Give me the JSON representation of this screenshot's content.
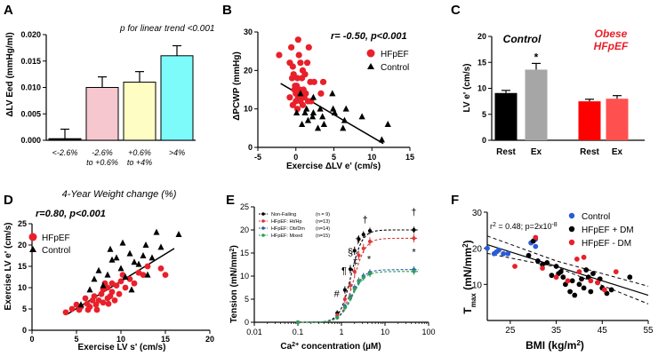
{
  "chart_data": [
    {
      "id": "A",
      "panel_label": "A",
      "type": "bar",
      "title": "",
      "annotation": "p for linear trend <0.001",
      "xlabel": "4-Year Weight change (%)",
      "ylabel": "ΔLV Eed (mmHg/ml)",
      "categories": [
        "<-2.6%",
        "-2.6% to +0.6%",
        "+0.6% to +4%",
        ">4%"
      ],
      "category_lines": [
        [
          "<-2.6%"
        ],
        [
          "-2.6%",
          "to +0.6%"
        ],
        [
          "+0.6%",
          "to +4%"
        ],
        [
          ">4%"
        ]
      ],
      "values": [
        0.0003,
        0.01,
        0.011,
        0.016
      ],
      "errors": [
        0.0018,
        0.002,
        0.002,
        0.0019
      ],
      "bar_colors": [
        "#000000",
        "#f6c7cf",
        "#fdfdc4",
        "#7dfafa"
      ],
      "ylim": [
        0,
        0.02
      ],
      "yticks": [
        0.0,
        0.005,
        0.01,
        0.015,
        0.02
      ],
      "ytick_labels": [
        "0.000",
        "0.005",
        "0.010",
        "0.015",
        "0.020"
      ]
    },
    {
      "id": "B",
      "panel_label": "B",
      "type": "scatter",
      "annotation": "r= -0.50, p<0.001",
      "xlabel": "Exercise ΔLV e' (cm/s)",
      "ylabel": "ΔPCWP (mmHg)",
      "xlim": [
        -5,
        15
      ],
      "ylim": [
        0,
        30
      ],
      "xticks": [
        -5,
        0,
        5,
        10,
        15
      ],
      "yticks": [
        0,
        10,
        20,
        30
      ],
      "legend": [
        {
          "name": "HFpEF",
          "marker": "circle",
          "color": "#e8202a"
        },
        {
          "name": "Control",
          "marker": "triangle",
          "color": "#000000"
        }
      ],
      "series": [
        {
          "name": "HFpEF",
          "marker": "circle",
          "color": "#e8202a",
          "x": [
            -2.2,
            0.3,
            -0.6,
            1.7,
            0.4,
            -0.8,
            0.6,
            1.5,
            -0.4,
            0.9,
            -0.3,
            1.2,
            0.2,
            -0.5,
            0.8,
            1.9,
            2.4,
            3.6,
            0.1,
            -0.1,
            1.0,
            -0.2,
            0.5,
            0.7,
            1.3,
            0.0,
            3.3,
            -0.8,
            0.3,
            1.1,
            0.6,
            0.0,
            1.6,
            2.0,
            -0.4,
            0.9,
            0.2
          ],
          "y": [
            24,
            28,
            26,
            26,
            24,
            22,
            22,
            22,
            21,
            20,
            19,
            19,
            18,
            18,
            18,
            17,
            17,
            17,
            16,
            16,
            15,
            15,
            15,
            14,
            14,
            14,
            14,
            13,
            13,
            13,
            12,
            12,
            12,
            12,
            11,
            11,
            10
          ]
        },
        {
          "name": "Control",
          "marker": "triangle",
          "color": "#000000",
          "x": [
            4.8,
            6.6,
            4.9,
            1.4,
            3.2,
            5.1,
            2.3,
            0.1,
            1.2,
            2.2,
            3.5,
            8.7,
            6.4,
            1.6,
            0.8,
            3.7,
            2.9,
            6.2,
            12.1,
            11.3,
            0.6,
            2.3
          ],
          "y": [
            14,
            10,
            10,
            10,
            10,
            9,
            9,
            9,
            9,
            8,
            8,
            8,
            7,
            7,
            6,
            6,
            5,
            5,
            6,
            2,
            14,
            13
          ]
        }
      ],
      "trendline": {
        "x": [
          -2,
          11.5
        ],
        "y": [
          16.6,
          1.0
        ]
      }
    },
    {
      "id": "C",
      "panel_label": "C",
      "type": "bar",
      "ylabel": "LV e' (cm/s)",
      "group_labels": [
        "Control",
        "Obese HFpEF"
      ],
      "group_label_lines": [
        [
          "Control"
        ],
        [
          "Obese",
          "HFpEF"
        ]
      ],
      "group_label_colors": [
        "#000000",
        "#e8202a"
      ],
      "categories": [
        "Rest",
        "Ex",
        "Rest",
        "Ex"
      ],
      "values": [
        9.1,
        13.6,
        7.5,
        8.0
      ],
      "errors": [
        0.5,
        1.2,
        0.4,
        0.6
      ],
      "bar_colors": [
        "#000000",
        "#a6a6a6",
        "#ff0000",
        "#ff5050"
      ],
      "significance": [
        "",
        "*",
        "",
        ""
      ],
      "ylim": [
        0,
        20
      ],
      "yticks": [
        0,
        5,
        10,
        15,
        20
      ],
      "ytick_labels": [
        "0",
        "5",
        "10",
        "15",
        "20"
      ]
    },
    {
      "id": "D",
      "panel_label": "D",
      "type": "scatter",
      "annotation": "r=0.80, p<0.001",
      "xlabel": "Exercise LV s' (cm/s)",
      "ylabel": "Exercise LV e' (cm/s)",
      "xlim": [
        0,
        20
      ],
      "ylim": [
        0,
        25
      ],
      "xticks": [
        0,
        5,
        10,
        15,
        20
      ],
      "yticks": [
        0,
        5,
        10,
        15,
        20,
        25
      ],
      "legend": [
        {
          "name": "HFpEF",
          "marker": "circle",
          "color": "#e8202a"
        },
        {
          "name": "Control",
          "marker": "triangle",
          "color": "#000000"
        }
      ],
      "series": [
        {
          "name": "HFpEF",
          "marker": "circle",
          "color": "#e8202a",
          "x": [
            3.8,
            4.5,
            5.0,
            5.3,
            5.5,
            6.0,
            6.2,
            6.5,
            6.8,
            7.0,
            7.2,
            7.5,
            7.8,
            8.0,
            8.0,
            8.2,
            8.5,
            8.5,
            8.8,
            9.0,
            9.0,
            9.3,
            9.5,
            9.8,
            10.0,
            10.2,
            10.5,
            11.0,
            11.5,
            12.0,
            12.5,
            13.0,
            14.5,
            15.0,
            6.3,
            7.3,
            8.6
          ],
          "y": [
            4.2,
            5.0,
            6.0,
            4.8,
            5.5,
            7.5,
            6.2,
            5.5,
            7.0,
            8.0,
            6.0,
            7.0,
            8.5,
            9.5,
            6.5,
            11.0,
            7.5,
            10.0,
            8.0,
            9.0,
            11.0,
            7.0,
            10.5,
            8.5,
            11.5,
            13.0,
            10.0,
            12.0,
            11.0,
            13.5,
            13.0,
            15.0,
            14.5,
            13.0,
            4.8,
            4.8,
            6.2
          ]
        },
        {
          "name": "Control",
          "marker": "triangle",
          "color": "#000000",
          "x": [
            5.5,
            6.5,
            7.0,
            7.5,
            8.0,
            8.5,
            9.0,
            9.5,
            10.0,
            10.5,
            11.0,
            11.5,
            12.0,
            12.5,
            13.0,
            14.0,
            14.5,
            16.5,
            8.8,
            11.2,
            13.5,
            12.8,
            10.2
          ],
          "y": [
            6.0,
            9.5,
            12.0,
            14.0,
            10.5,
            13.0,
            16.5,
            17.0,
            14.5,
            12.5,
            18.0,
            16.0,
            15.5,
            17.5,
            13.0,
            23.0,
            19.5,
            22.5,
            19.0,
            9.5,
            17.0,
            20.0,
            20.5
          ]
        }
      ],
      "trendline": {
        "x": [
          4,
          16
        ],
        "y": [
          3.8,
          19.2
        ]
      }
    },
    {
      "id": "E",
      "panel_label": "E",
      "type": "line",
      "xscale": "log",
      "xlabel": "Ca2+ concentration (µM)",
      "xlabel_parts": [
        "Ca",
        "2+",
        " concentration (",
        "µM",
        ")"
      ],
      "ylabel": "Tension (mN/mm2)",
      "ylabel_parts": [
        "Tension (mN/mm",
        "2",
        ")"
      ],
      "xlim": [
        0.01,
        100
      ],
      "ylim": [
        0,
        25
      ],
      "xticks": [
        0.01,
        0.1,
        1,
        10,
        100
      ],
      "xtick_labels": [
        "0.01",
        "0.1",
        "1",
        "10",
        "100"
      ],
      "yticks": [
        0,
        5,
        10,
        15,
        20,
        25
      ],
      "legend": [
        {
          "name": "Non-Failing",
          "n": "(n = 9)",
          "color": "#000000"
        },
        {
          "name": "HFpEF: Ht/Hp",
          "n": "(n=13)",
          "color": "#d93a3a"
        },
        {
          "name": "HFpEF: Ob/Dm",
          "n": "(n=14)",
          "color": "#2e5fa8"
        },
        {
          "name": "HFpEF: Mixed",
          "n": "(n=15)",
          "color": "#2f9e5a"
        }
      ],
      "x": [
        0.1,
        0.8,
        1.2,
        1.6,
        2.0,
        2.5,
        3.2,
        4.5,
        46
      ],
      "series": [
        {
          "name": "Non-Failing",
          "color": "#000000",
          "max": 20.0,
          "ec50": 1.65,
          "hill": 3.4,
          "values": [
            0.0,
            2.0,
            7.0,
            11.5,
            15.5,
            18.0,
            19.0,
            19.8,
            20.0
          ],
          "errors": [
            0.2,
            0.6,
            0.8,
            0.9,
            0.9,
            0.8,
            0.7,
            0.7,
            0.7
          ]
        },
        {
          "name": "HFpEF: Ht/Hp",
          "color": "#d93a3a",
          "max": 18.2,
          "ec50": 1.9,
          "hill": 3.2,
          "values": [
            0.0,
            1.5,
            5.0,
            8.0,
            11.0,
            14.5,
            16.0,
            17.5,
            18.2
          ],
          "errors": [
            0.2,
            0.5,
            0.8,
            0.9,
            1.0,
            1.0,
            1.0,
            0.9,
            0.9
          ]
        },
        {
          "name": "HFpEF: Ob/Dm",
          "color": "#2e5fa8",
          "max": 11.4,
          "ec50": 1.7,
          "hill": 3.0,
          "values": [
            0.0,
            1.0,
            3.5,
            5.5,
            7.5,
            9.0,
            10.0,
            10.8,
            11.4
          ],
          "errors": [
            0.2,
            0.4,
            0.6,
            0.7,
            0.7,
            0.7,
            0.7,
            0.7,
            0.7
          ]
        },
        {
          "name": "HFpEF: Mixed",
          "color": "#2f9e5a",
          "max": 11.0,
          "ec50": 1.75,
          "hill": 3.0,
          "values": [
            0.0,
            1.0,
            3.2,
            5.2,
            7.2,
            8.8,
            9.7,
            10.5,
            11.0
          ],
          "errors": [
            0.2,
            0.4,
            0.6,
            0.7,
            0.7,
            0.7,
            0.7,
            0.7,
            0.7
          ]
        }
      ],
      "annotations": [
        {
          "text": "#",
          "x": 0.78,
          "y": 5.5
        },
        {
          "text": "¶",
          "x": 1.15,
          "y": 10.5
        },
        {
          "text": "§",
          "x": 1.6,
          "y": 14.5
        },
        {
          "text": "‡",
          "x": 2.1,
          "y": 12.5
        },
        {
          "text": "†",
          "x": 2.35,
          "y": 17.0
        },
        {
          "text": "†",
          "x": 3.5,
          "y": 21.5
        },
        {
          "text": "*",
          "x": 4.3,
          "y": 13.0
        },
        {
          "text": "†",
          "x": 46,
          "y": 23.2
        },
        {
          "text": "*",
          "x": 46,
          "y": 14.5
        }
      ]
    },
    {
      "id": "F",
      "panel_label": "F",
      "type": "scatter",
      "annotation": "r2 = 0.48; p=2x10-8",
      "annotation_parts": [
        "r",
        "2",
        " = 0.48; p=2x10",
        "-8"
      ],
      "xlabel": "BMI (kg/m2)",
      "xlabel_parts": [
        "BMI (kg/m",
        "2",
        ")"
      ],
      "ylabel": "Tmax (mN/mm2)",
      "ylabel_parts": [
        "T",
        "max",
        " (mN/mm",
        "2",
        ")"
      ],
      "xlim": [
        20,
        55
      ],
      "ylim": [
        0,
        30
      ],
      "xticks": [
        25,
        35,
        45,
        55
      ],
      "yticks": [
        10,
        20,
        30
      ],
      "legend": [
        {
          "name": "Control",
          "color": "#2a5bd7"
        },
        {
          "name": "HFpEF + DM",
          "color": "#000000"
        },
        {
          "name": "HFpEF  - DM",
          "color": "#e8202a"
        }
      ],
      "series": [
        {
          "name": "Control",
          "color": "#2a5bd7",
          "x": [
            20.0,
            21.5,
            22.0,
            22.5,
            23.5,
            24.5,
            29.5,
            30.5,
            30.5
          ],
          "y": [
            20.0,
            18.5,
            19.0,
            19.5,
            18.5,
            18.5,
            21.5,
            22.5,
            20.5
          ]
        },
        {
          "name": "HFpEF + DM",
          "color": "#000000",
          "x": [
            29.0,
            30.0,
            31.0,
            32.0,
            33.0,
            34.0,
            35.0,
            35.5,
            36.0,
            36.5,
            37.0,
            38.0,
            38.5,
            39.0,
            40.0,
            40.5,
            41.0,
            42.0,
            42.5,
            43.0,
            44.0,
            45.0,
            46.0,
            47.0,
            51.0,
            41.5,
            44.5
          ],
          "y": [
            18.0,
            22.0,
            16.5,
            15.5,
            16.0,
            12.5,
            15.0,
            13.0,
            13.5,
            12.0,
            10.0,
            8.0,
            11.0,
            7.0,
            10.0,
            11.5,
            9.0,
            12.0,
            8.0,
            13.0,
            10.5,
            9.0,
            7.5,
            8.5,
            12.0,
            14.0,
            11.5
          ]
        },
        {
          "name": "HFpEF  - DM",
          "color": "#e8202a",
          "x": [
            26.0,
            30.5,
            32.0,
            35.0,
            37.5,
            39.5,
            40.0,
            41.0,
            42.5,
            44.0,
            45.5,
            48.0
          ],
          "y": [
            15.0,
            23.0,
            14.5,
            12.0,
            11.0,
            17.0,
            13.5,
            17.5,
            11.0,
            10.5,
            8.5,
            13.5
          ]
        }
      ],
      "trendline": {
        "x": [
          20,
          55
        ],
        "y": [
          21.0,
          7.0
        ]
      },
      "ci_upper": {
        "x": [
          20,
          35,
          55
        ],
        "y": [
          23.4,
          16.5,
          9.5
        ]
      },
      "ci_lower": {
        "x": [
          20,
          35,
          55
        ],
        "y": [
          18.6,
          14.8,
          4.6
        ]
      }
    }
  ]
}
